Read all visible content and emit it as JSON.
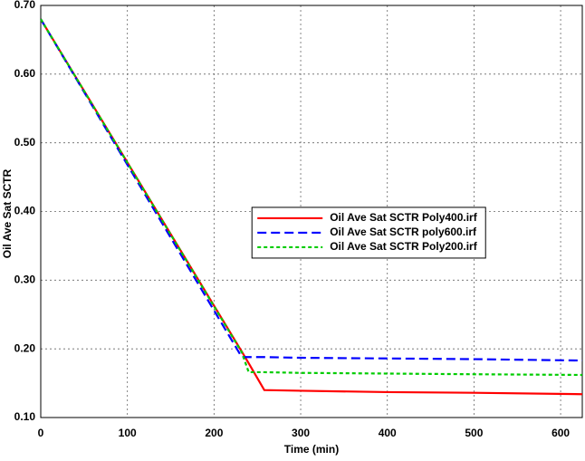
{
  "chart_data": {
    "type": "line",
    "x_label": "Time (min)",
    "y_label": "Oil Ave Sat SCTR",
    "x": [
      0,
      232,
      240,
      258,
      300,
      400,
      500,
      625
    ],
    "series": [
      {
        "name": "Oil Ave Sat SCTR Poly400.irf",
        "color": "#ff0000",
        "dash": "solid",
        "values": [
          0.68,
          0.196,
          0.179,
          0.14,
          0.139,
          0.137,
          0.136,
          0.134
        ]
      },
      {
        "name": "Oil Ave Sat SCTR poly600.irf",
        "color": "#0000ff",
        "dash": "dashed",
        "values": [
          0.68,
          0.188,
          0.188,
          0.188,
          0.187,
          0.186,
          0.185,
          0.183
        ]
      },
      {
        "name": "Oil Ave Sat SCTR Poly200.irf",
        "color": "#00cc00",
        "dash": "dotted",
        "values": [
          0.68,
          0.195,
          0.166,
          0.166,
          0.165,
          0.164,
          0.163,
          0.162
        ]
      }
    ],
    "xlim": [
      0,
      625
    ],
    "ylim": [
      0.1,
      0.7
    ],
    "xticks": [
      0,
      100,
      200,
      300,
      400,
      500,
      600
    ],
    "yticks": [
      {
        "value": 0.1,
        "label": "0.10"
      },
      {
        "value": 0.2,
        "label": "0.20"
      },
      {
        "value": 0.3,
        "label": "0.30"
      },
      {
        "value": 0.4,
        "label": "0.40"
      },
      {
        "value": 0.5,
        "label": "0.50"
      },
      {
        "value": 0.6,
        "label": "0.60"
      },
      {
        "value": 0.7,
        "label": "0.70"
      }
    ],
    "grid": true,
    "legend": "center"
  }
}
